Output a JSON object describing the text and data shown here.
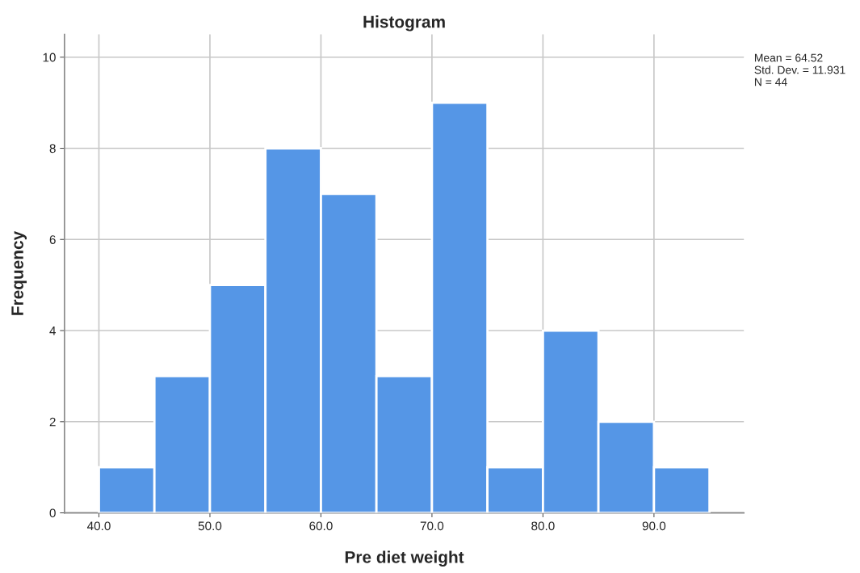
{
  "chart_data": {
    "type": "histogram",
    "title": "Histogram",
    "xlabel": "Pre diet weight",
    "ylabel": "Frequency",
    "bins": [
      40,
      45,
      50,
      55,
      60,
      65,
      70,
      75,
      80,
      85,
      90,
      95
    ],
    "values": [
      1,
      3,
      5,
      8,
      7,
      3,
      9,
      1,
      4,
      2,
      1
    ],
    "color": "#5596e6",
    "xlim": [
      36.9,
      98.1
    ],
    "ylim": [
      0,
      10.5
    ],
    "xticks": [
      {
        "value": 40,
        "label": "40.0"
      },
      {
        "value": 50,
        "label": "50.0"
      },
      {
        "value": 60,
        "label": "60.0"
      },
      {
        "value": 70,
        "label": "70.0"
      },
      {
        "value": 80,
        "label": "80.0"
      },
      {
        "value": 90,
        "label": "90.0"
      }
    ],
    "yticks": [
      0,
      2,
      4,
      6,
      8,
      10
    ],
    "grid": true,
    "annotations": [
      "Mean = 64.52\nStd. Dev. = 11.931\nN = 44"
    ]
  }
}
